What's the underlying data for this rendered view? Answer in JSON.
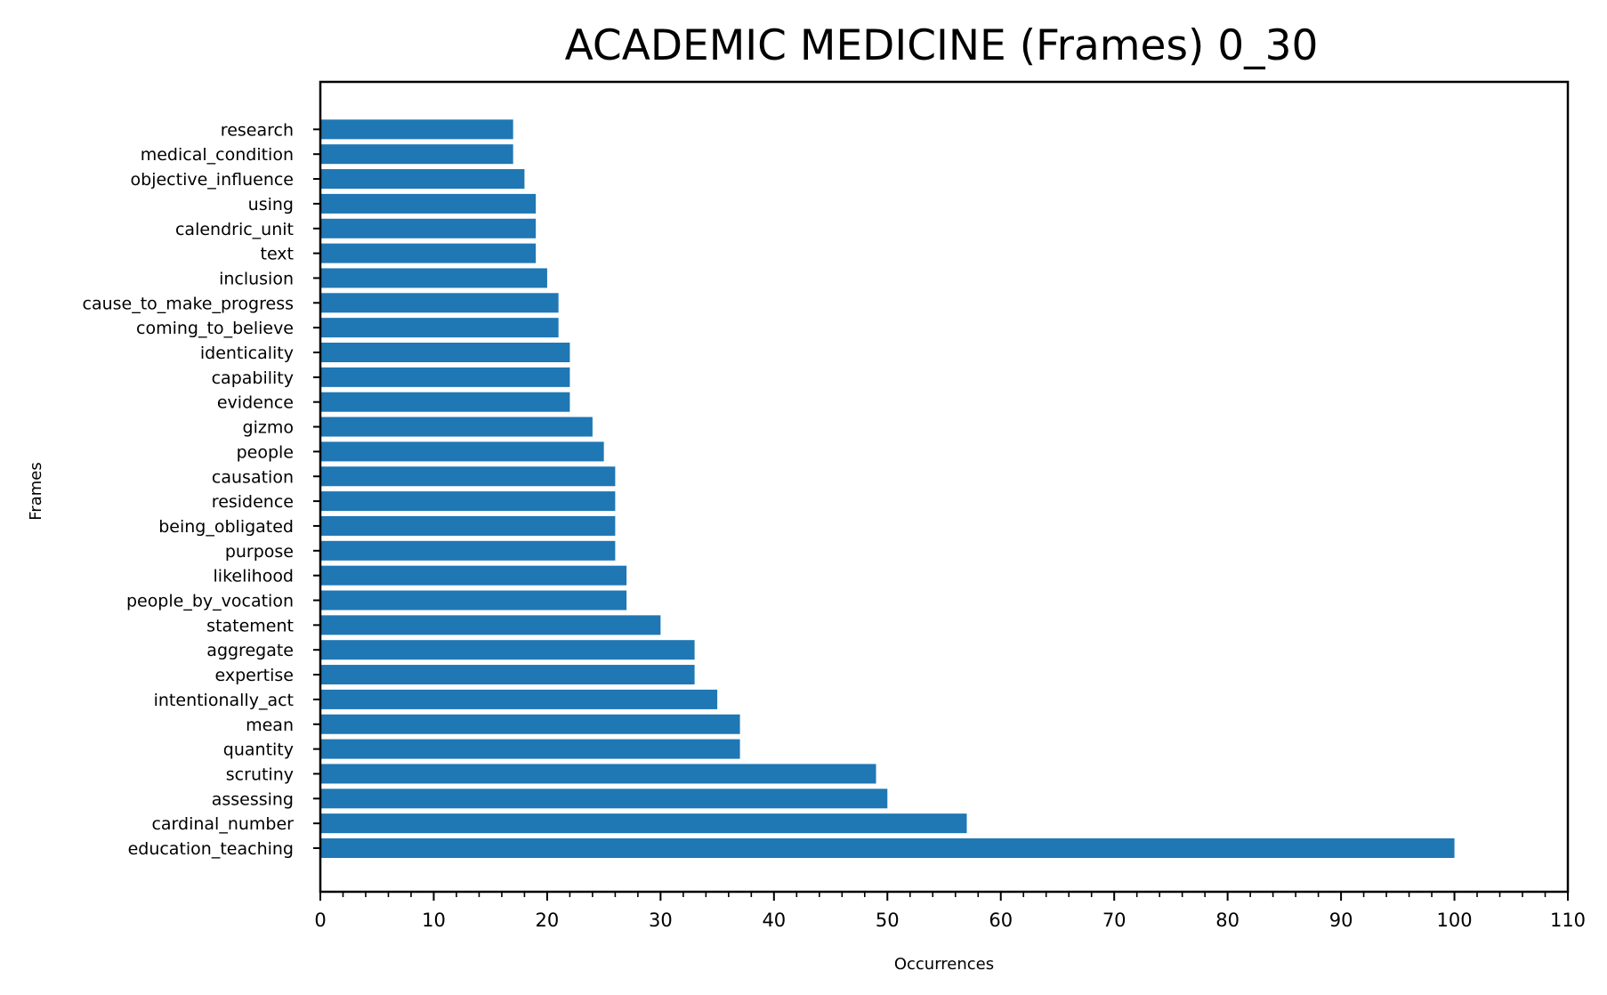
{
  "chart_data": {
    "type": "bar",
    "orientation": "horizontal",
    "title": "ACADEMIC MEDICINE (Frames) 0_30",
    "xlabel": "Occurrences",
    "ylabel": "Frames",
    "xlim": [
      0,
      110
    ],
    "xticks": [
      0,
      10,
      20,
      30,
      40,
      50,
      60,
      70,
      80,
      90,
      100,
      110
    ],
    "minor_tick_step": 2,
    "grid": false,
    "bar_color": "#1f77b4",
    "categories": [
      "education_teaching",
      "cardinal_number",
      "assessing",
      "scrutiny",
      "quantity",
      "mean",
      "intentionally_act",
      "expertise",
      "aggregate",
      "statement",
      "people_by_vocation",
      "likelihood",
      "purpose",
      "being_obligated",
      "residence",
      "causation",
      "people",
      "gizmo",
      "evidence",
      "capability",
      "identicality",
      "coming_to_believe",
      "cause_to_make_progress",
      "inclusion",
      "text",
      "calendric_unit",
      "using",
      "objective_influence",
      "medical_condition",
      "research"
    ],
    "values": [
      100,
      57,
      50,
      49,
      37,
      37,
      35,
      33,
      33,
      30,
      27,
      27,
      26,
      26,
      26,
      26,
      25,
      24,
      22,
      22,
      22,
      21,
      21,
      20,
      19,
      19,
      19,
      18,
      17,
      17
    ]
  }
}
